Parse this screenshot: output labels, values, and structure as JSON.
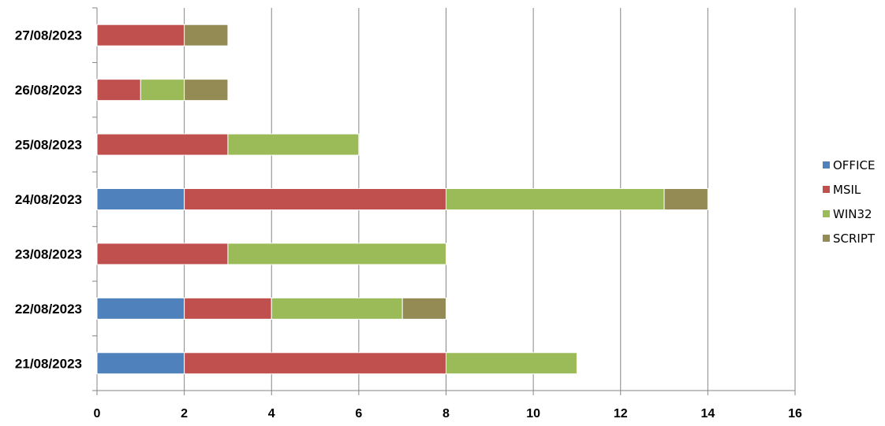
{
  "chart_data": {
    "type": "bar",
    "orientation": "horizontal",
    "stacked": true,
    "title": "",
    "xlabel": "",
    "ylabel": "",
    "xlim": [
      0,
      16
    ],
    "x_ticks": [
      "0",
      "2",
      "4",
      "6",
      "8",
      "10",
      "12",
      "14",
      "16"
    ],
    "grid": "vertical",
    "legend_position": "right",
    "categories": [
      "21/08/2023",
      "22/08/2023",
      "23/08/2023",
      "24/08/2023",
      "25/08/2023",
      "26/08/2023",
      "27/08/2023"
    ],
    "series": [
      {
        "name": "OFFICE",
        "color": "#4F81BD",
        "values": [
          2,
          2,
          0,
          2,
          0,
          0,
          0
        ]
      },
      {
        "name": "MSIL",
        "color": "#C0504D",
        "values": [
          6,
          2,
          3,
          6,
          3,
          1,
          2
        ]
      },
      {
        "name": "WIN32",
        "color": "#9BBB59",
        "values": [
          3,
          3,
          5,
          5,
          3,
          1,
          0
        ]
      },
      {
        "name": "SCRIPT",
        "color": "#948A54",
        "values": [
          0,
          1,
          0,
          1,
          0,
          1,
          1
        ]
      }
    ]
  }
}
